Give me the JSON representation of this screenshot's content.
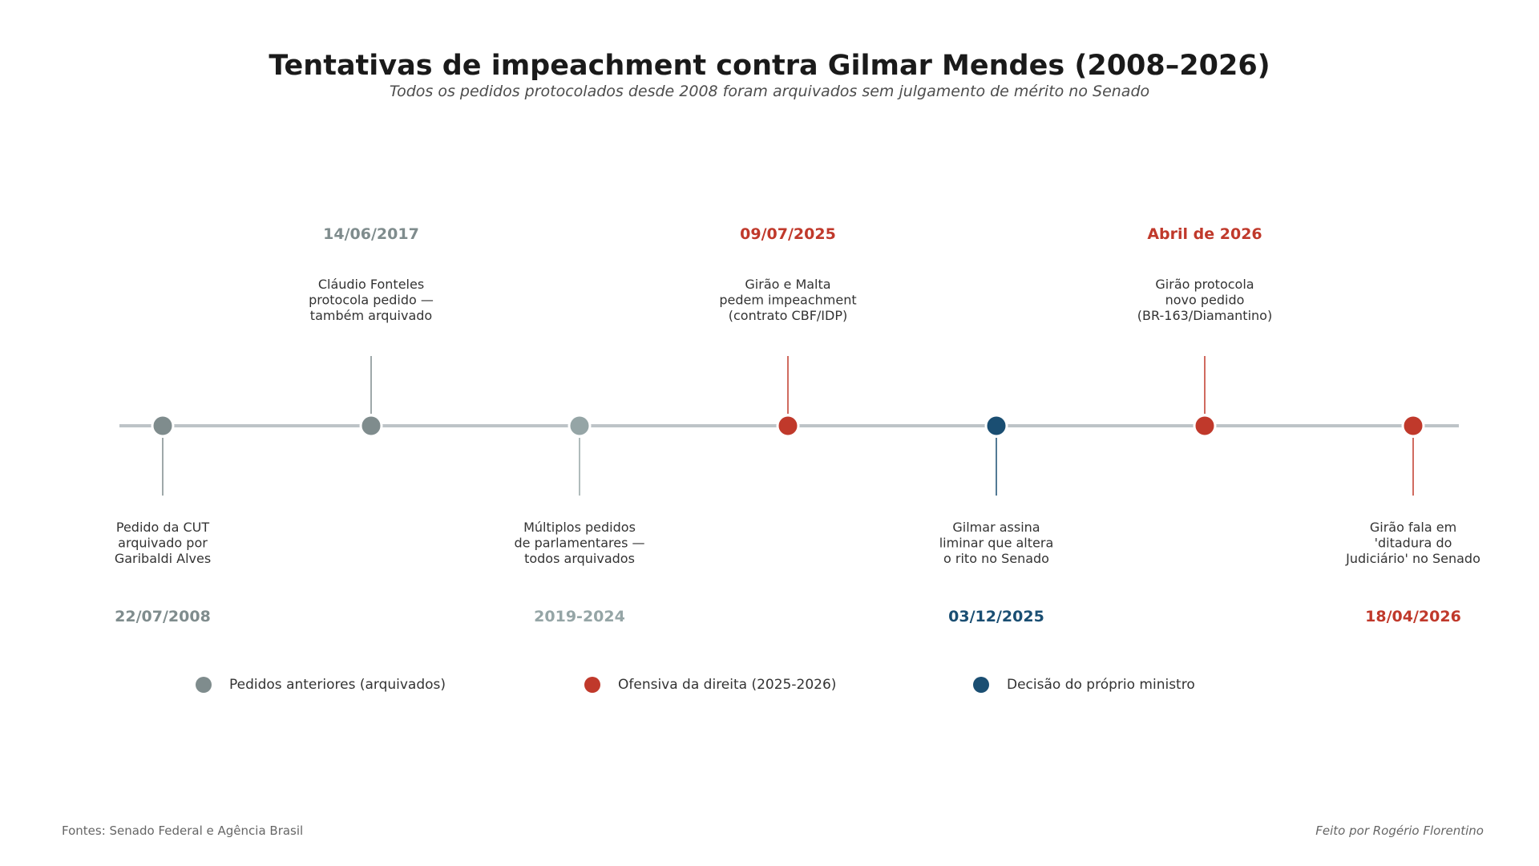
{
  "title": "Tentativas de impeachment contra Gilmar Mendes (2008–2026)",
  "subtitle": "Todos os pedidos protocolados desde 2008 foram arquivados sem julgamento de mérito no Senado",
  "colors": {
    "previous": "#7f8c8d",
    "previous_light": "#95a5a6",
    "right_offensive": "#c0392b",
    "minister_decision": "#1a4e72",
    "axis": "#bdc3c7"
  },
  "events": [
    {
      "date": "22/07/2008",
      "lines": [
        "Pedido da CUT",
        "arquivado por",
        "Garibaldi Alves"
      ],
      "side": "below",
      "category": "previous"
    },
    {
      "date": "14/06/2017",
      "lines": [
        "Cláudio Fonteles",
        "protocola pedido —",
        "também arquivado"
      ],
      "side": "above",
      "category": "previous"
    },
    {
      "date": "2019-2024",
      "lines": [
        "Múltiplos pedidos",
        "de parlamentares —",
        "todos arquivados"
      ],
      "side": "below",
      "category": "previous_light"
    },
    {
      "date": "09/07/2025",
      "lines": [
        "Girão e Malta",
        "pedem impeachment",
        "(contrato CBF/IDP)"
      ],
      "side": "above",
      "category": "right_offensive"
    },
    {
      "date": "03/12/2025",
      "lines": [
        "Gilmar assina",
        "liminar que altera",
        "o rito no Senado"
      ],
      "side": "below",
      "category": "minister_decision"
    },
    {
      "date": "Abril de 2026",
      "lines": [
        "Girão protocola",
        "novo pedido",
        "(BR-163/Diamantino)"
      ],
      "side": "above",
      "category": "right_offensive"
    },
    {
      "date": "18/04/2026",
      "lines": [
        "Girão fala em",
        "'ditadura do",
        "Judiciário' no Senado"
      ],
      "side": "below",
      "category": "right_offensive"
    }
  ],
  "legend": [
    {
      "label": "Pedidos anteriores (arquivados)",
      "category": "previous"
    },
    {
      "label": "Ofensiva da direita (2025-2026)",
      "category": "right_offensive"
    },
    {
      "label": "Decisão do próprio ministro",
      "category": "minister_decision"
    }
  ],
  "footer": {
    "sources": "Fontes: Senado Federal e Agência Brasil",
    "credit": "Feito por Rogério Florentino"
  }
}
